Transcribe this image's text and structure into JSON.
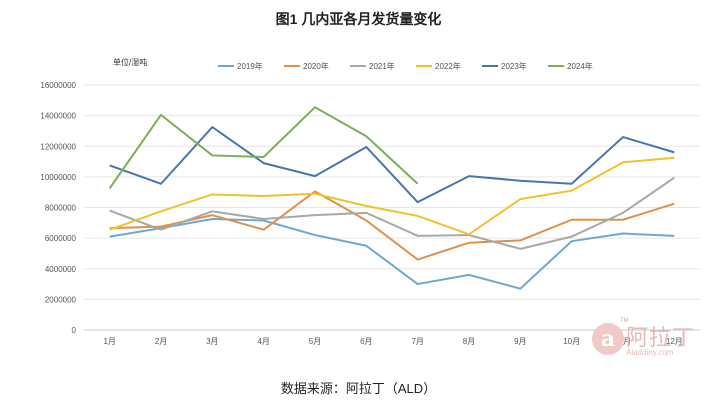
{
  "chart_data": {
    "type": "line",
    "title": "图1 几内亚各月发货量变化",
    "unit_label": "单位/湿吨",
    "categories": [
      "1月",
      "2月",
      "3月",
      "4月",
      "5月",
      "6月",
      "7月",
      "8月",
      "9月",
      "10月",
      "11月",
      "12月"
    ],
    "ylim": [
      0,
      16000000
    ],
    "yticks": [
      0,
      2000000,
      4000000,
      6000000,
      8000000,
      10000000,
      12000000,
      14000000,
      16000000
    ],
    "ytick_labels": [
      "0",
      "2000000",
      "4000000",
      "6000000",
      "8000000",
      "10000000",
      "12000000",
      "14000000",
      "16000000"
    ],
    "grid": true,
    "legend_position": "top",
    "series": [
      {
        "name": "2019年",
        "color": "#6fa8c8",
        "values": [
          6100000,
          6650000,
          7250000,
          7150000,
          6200000,
          5500000,
          3000000,
          3600000,
          2700000,
          5800000,
          6300000,
          6150000
        ]
      },
      {
        "name": "2020年",
        "color": "#e0904a",
        "values": [
          6650000,
          6750000,
          7500000,
          6550000,
          9050000,
          7150000,
          4600000,
          5700000,
          5850000,
          7200000,
          7200000,
          8250000
        ]
      },
      {
        "name": "2021年",
        "color": "#a8a8a8",
        "values": [
          7800000,
          6550000,
          7750000,
          7250000,
          7500000,
          7650000,
          6150000,
          6200000,
          5300000,
          6100000,
          7650000,
          9950000
        ]
      },
      {
        "name": "2022年",
        "color": "#f2c12e",
        "values": [
          6550000,
          7750000,
          8850000,
          8750000,
          8900000,
          8100000,
          7450000,
          6250000,
          8550000,
          9100000,
          10950000,
          11250000
        ]
      },
      {
        "name": "2023年",
        "color": "#4a74ab",
        "values": [
          10750000,
          9550000,
          13250000,
          10900000,
          10050000,
          11950000,
          8350000,
          10050000,
          9750000,
          9550000,
          12600000,
          11600000
        ]
      },
      {
        "name": "2024年",
        "color": "#7dad58",
        "values": [
          9250000,
          14050000,
          11400000,
          11300000,
          14550000,
          12650000,
          9550000,
          null,
          null,
          null,
          null,
          null
        ]
      }
    ]
  },
  "source": "数据来源：阿拉丁（ALD）",
  "watermark": {
    "mark": "a",
    "tm": "TM",
    "text": "阿拉丁",
    "url": "Aladdiny.com"
  }
}
